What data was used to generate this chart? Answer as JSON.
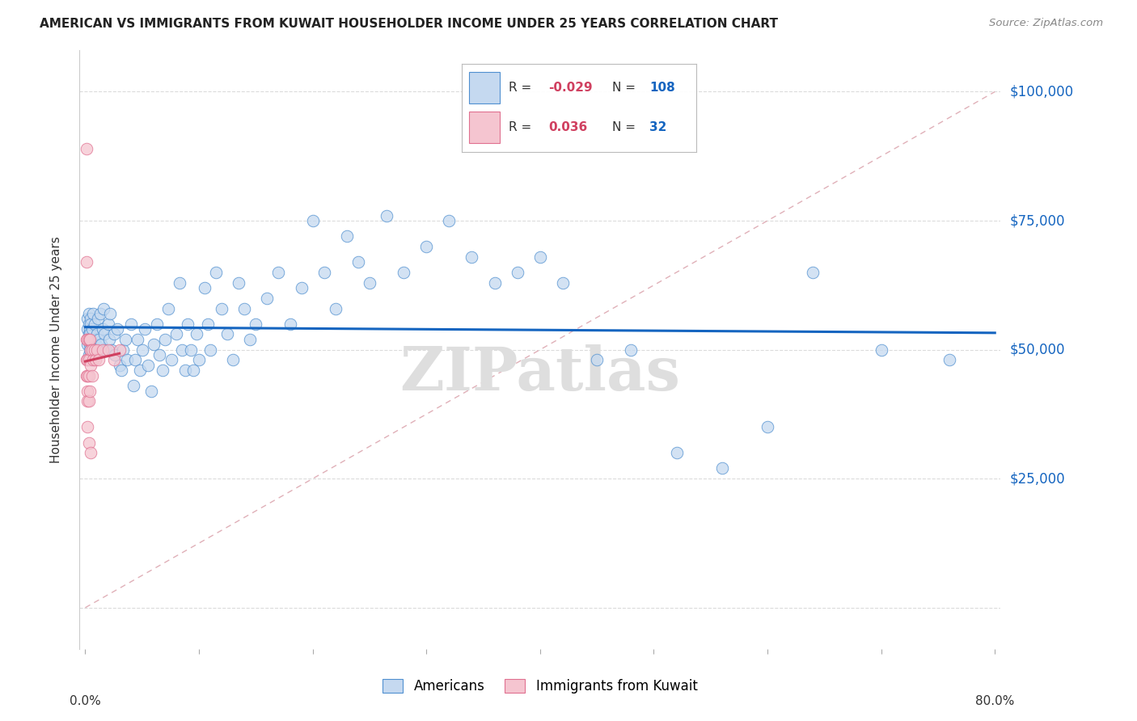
{
  "title": "AMERICAN VS IMMIGRANTS FROM KUWAIT HOUSEHOLDER INCOME UNDER 25 YEARS CORRELATION CHART",
  "source": "Source: ZipAtlas.com",
  "ylabel": "Householder Income Under 25 years",
  "watermark": "ZIPatlas",
  "legend": {
    "blue_R": "-0.029",
    "blue_N": "108",
    "pink_R": "0.036",
    "pink_N": "32"
  },
  "ytick_positions": [
    0,
    25000,
    50000,
    75000,
    100000
  ],
  "ytick_labels": [
    "",
    "$25,000",
    "$50,000",
    "$75,000",
    "$100,000"
  ],
  "blue_fill": "#c5d9f0",
  "pink_fill": "#f5c5d0",
  "blue_edge": "#5090d0",
  "pink_edge": "#e07090",
  "blue_line_color": "#1565c0",
  "pink_line_color": "#d04060",
  "ref_line_color": "#e0b0b8",
  "grid_color": "#cccccc",
  "blue_scatter_x": [
    0.002,
    0.002,
    0.002,
    0.003,
    0.003,
    0.003,
    0.003,
    0.003,
    0.004,
    0.004,
    0.004,
    0.004,
    0.005,
    0.005,
    0.005,
    0.005,
    0.006,
    0.006,
    0.007,
    0.007,
    0.008,
    0.008,
    0.009,
    0.01,
    0.011,
    0.012,
    0.013,
    0.014,
    0.015,
    0.016,
    0.017,
    0.018,
    0.02,
    0.021,
    0.022,
    0.023,
    0.025,
    0.026,
    0.028,
    0.03,
    0.032,
    0.033,
    0.035,
    0.037,
    0.04,
    0.042,
    0.044,
    0.046,
    0.048,
    0.05,
    0.052,
    0.055,
    0.058,
    0.06,
    0.063,
    0.065,
    0.068,
    0.07,
    0.073,
    0.076,
    0.08,
    0.083,
    0.085,
    0.088,
    0.09,
    0.093,
    0.095,
    0.098,
    0.1,
    0.105,
    0.108,
    0.11,
    0.115,
    0.12,
    0.125,
    0.13,
    0.135,
    0.14,
    0.145,
    0.15,
    0.16,
    0.17,
    0.18,
    0.19,
    0.2,
    0.21,
    0.22,
    0.23,
    0.24,
    0.25,
    0.265,
    0.28,
    0.3,
    0.32,
    0.34,
    0.36,
    0.38,
    0.4,
    0.42,
    0.45,
    0.48,
    0.52,
    0.56,
    0.6,
    0.64,
    0.7,
    0.76
  ],
  "blue_scatter_y": [
    54000,
    51000,
    56000,
    55000,
    52000,
    49000,
    53000,
    57000,
    51000,
    54000,
    50000,
    53000,
    56000,
    52000,
    48000,
    55000,
    54000,
    51000,
    57000,
    50000,
    52000,
    55000,
    51000,
    53000,
    56000,
    52000,
    57000,
    51000,
    54000,
    58000,
    53000,
    50000,
    55000,
    52000,
    57000,
    50000,
    53000,
    49000,
    54000,
    47000,
    46000,
    50000,
    52000,
    48000,
    55000,
    43000,
    48000,
    52000,
    46000,
    50000,
    54000,
    47000,
    42000,
    51000,
    55000,
    49000,
    46000,
    52000,
    58000,
    48000,
    53000,
    63000,
    50000,
    46000,
    55000,
    50000,
    46000,
    53000,
    48000,
    62000,
    55000,
    50000,
    65000,
    58000,
    53000,
    48000,
    63000,
    58000,
    52000,
    55000,
    60000,
    65000,
    55000,
    62000,
    75000,
    65000,
    58000,
    72000,
    67000,
    63000,
    76000,
    65000,
    70000,
    75000,
    68000,
    63000,
    65000,
    68000,
    63000,
    48000,
    50000,
    30000,
    27000,
    35000,
    65000,
    50000,
    48000
  ],
  "pink_scatter_x": [
    0.001,
    0.001,
    0.001,
    0.001,
    0.001,
    0.002,
    0.002,
    0.002,
    0.002,
    0.002,
    0.002,
    0.003,
    0.003,
    0.003,
    0.003,
    0.003,
    0.004,
    0.004,
    0.005,
    0.005,
    0.005,
    0.006,
    0.006,
    0.007,
    0.008,
    0.009,
    0.01,
    0.012,
    0.015,
    0.02,
    0.025,
    0.03
  ],
  "pink_scatter_y": [
    89000,
    67000,
    52000,
    48000,
    45000,
    52000,
    48000,
    45000,
    42000,
    40000,
    35000,
    52000,
    48000,
    45000,
    40000,
    32000,
    52000,
    42000,
    50000,
    47000,
    30000,
    50000,
    45000,
    48000,
    50000,
    48000,
    50000,
    48000,
    50000,
    50000,
    48000,
    50000
  ]
}
